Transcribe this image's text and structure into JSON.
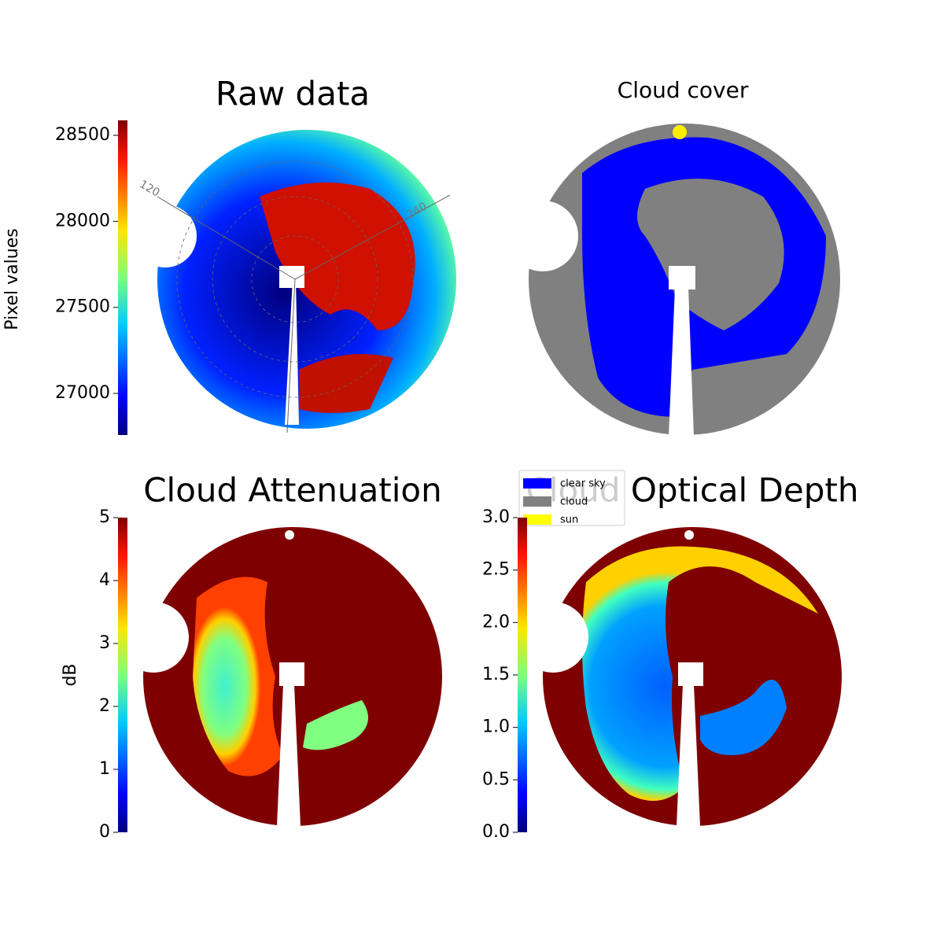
{
  "chart_data": [
    {
      "type": "image",
      "title": "Raw data",
      "colorbar_label": "Pixel values",
      "ylim": [
        26758,
        28587
      ],
      "yticks": [
        27000,
        27500,
        28000,
        28500
      ],
      "annotations": [
        "120",
        "240"
      ]
    },
    {
      "type": "image",
      "title": "Cloud cover",
      "legend": [
        {
          "name": "clear sky",
          "color": "#0000ff"
        },
        {
          "name": "cloud",
          "color": "#808080"
        },
        {
          "name": "sun",
          "color": "#ffff00"
        }
      ]
    },
    {
      "type": "image",
      "title": "Cloud Attenuation",
      "colorbar_label": "dB",
      "ylim": [
        0,
        5
      ],
      "yticks": [
        0,
        1,
        2,
        3,
        4,
        5
      ]
    },
    {
      "type": "image",
      "title": "Cloud Optical Depth",
      "ylim": [
        0,
        3
      ],
      "yticks": [
        {
          "value": 0,
          "label": "0.0"
        },
        {
          "value": 0.5,
          "label": "0.5"
        },
        {
          "value": 1,
          "label": "1.0"
        },
        {
          "value": 1.5,
          "label": "1.5"
        },
        {
          "value": 2,
          "label": "2.0"
        },
        {
          "value": 2.5,
          "label": "2.5"
        },
        {
          "value": 3,
          "label": "3.0"
        }
      ]
    }
  ]
}
